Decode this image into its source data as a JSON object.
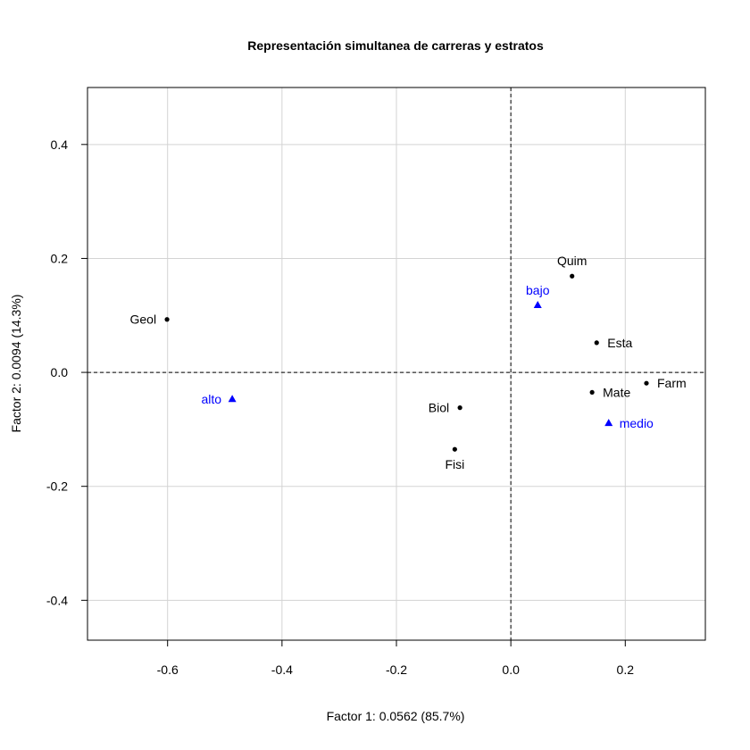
{
  "chart_data": {
    "type": "scatter",
    "title": "Representación simultanea de carreras y estratos",
    "xlabel": "Factor 1: 0.0562 (85.7%)",
    "ylabel": "Factor 2: 0.0094 (14.3%)",
    "xlim": [
      -0.74,
      0.34
    ],
    "ylim": [
      -0.47,
      0.5
    ],
    "xticks": [
      -0.6,
      -0.4,
      -0.2,
      0.0,
      0.2
    ],
    "xtick_labels": [
      "-0.6",
      "-0.4",
      "-0.2",
      "0.0",
      "0.2"
    ],
    "yticks": [
      -0.4,
      -0.2,
      0.0,
      0.2,
      0.4
    ],
    "ytick_labels": [
      "-0.4",
      "-0.2",
      "0.0",
      "0.2",
      "0.4"
    ],
    "grid": true,
    "reference_lines": {
      "x": 0,
      "y": 0,
      "style": "dashed"
    },
    "series": [
      {
        "marker": "circle",
        "color": "#000000",
        "points": [
          {
            "label": "Geol",
            "x": -0.601,
            "y": 0.093,
            "label_pos": "left"
          },
          {
            "label": "Quim",
            "x": 0.107,
            "y": 0.169,
            "label_pos": "above"
          },
          {
            "label": "Esta",
            "x": 0.15,
            "y": 0.052,
            "label_pos": "right"
          },
          {
            "label": "Farm",
            "x": 0.237,
            "y": -0.019,
            "label_pos": "right"
          },
          {
            "label": "Mate",
            "x": 0.142,
            "y": -0.035,
            "label_pos": "right"
          },
          {
            "label": "Biol",
            "x": -0.089,
            "y": -0.062,
            "label_pos": "left"
          },
          {
            "label": "Fisi",
            "x": -0.098,
            "y": -0.135,
            "label_pos": "below"
          }
        ]
      },
      {
        "marker": "triangle",
        "color": "#0000ff",
        "points": [
          {
            "label": "bajo",
            "x": 0.047,
            "y": 0.118,
            "label_pos": "above"
          },
          {
            "label": "alto",
            "x": -0.487,
            "y": -0.047,
            "label_pos": "left"
          },
          {
            "label": "medio",
            "x": 0.171,
            "y": -0.089,
            "label_pos": "right"
          }
        ]
      }
    ]
  }
}
